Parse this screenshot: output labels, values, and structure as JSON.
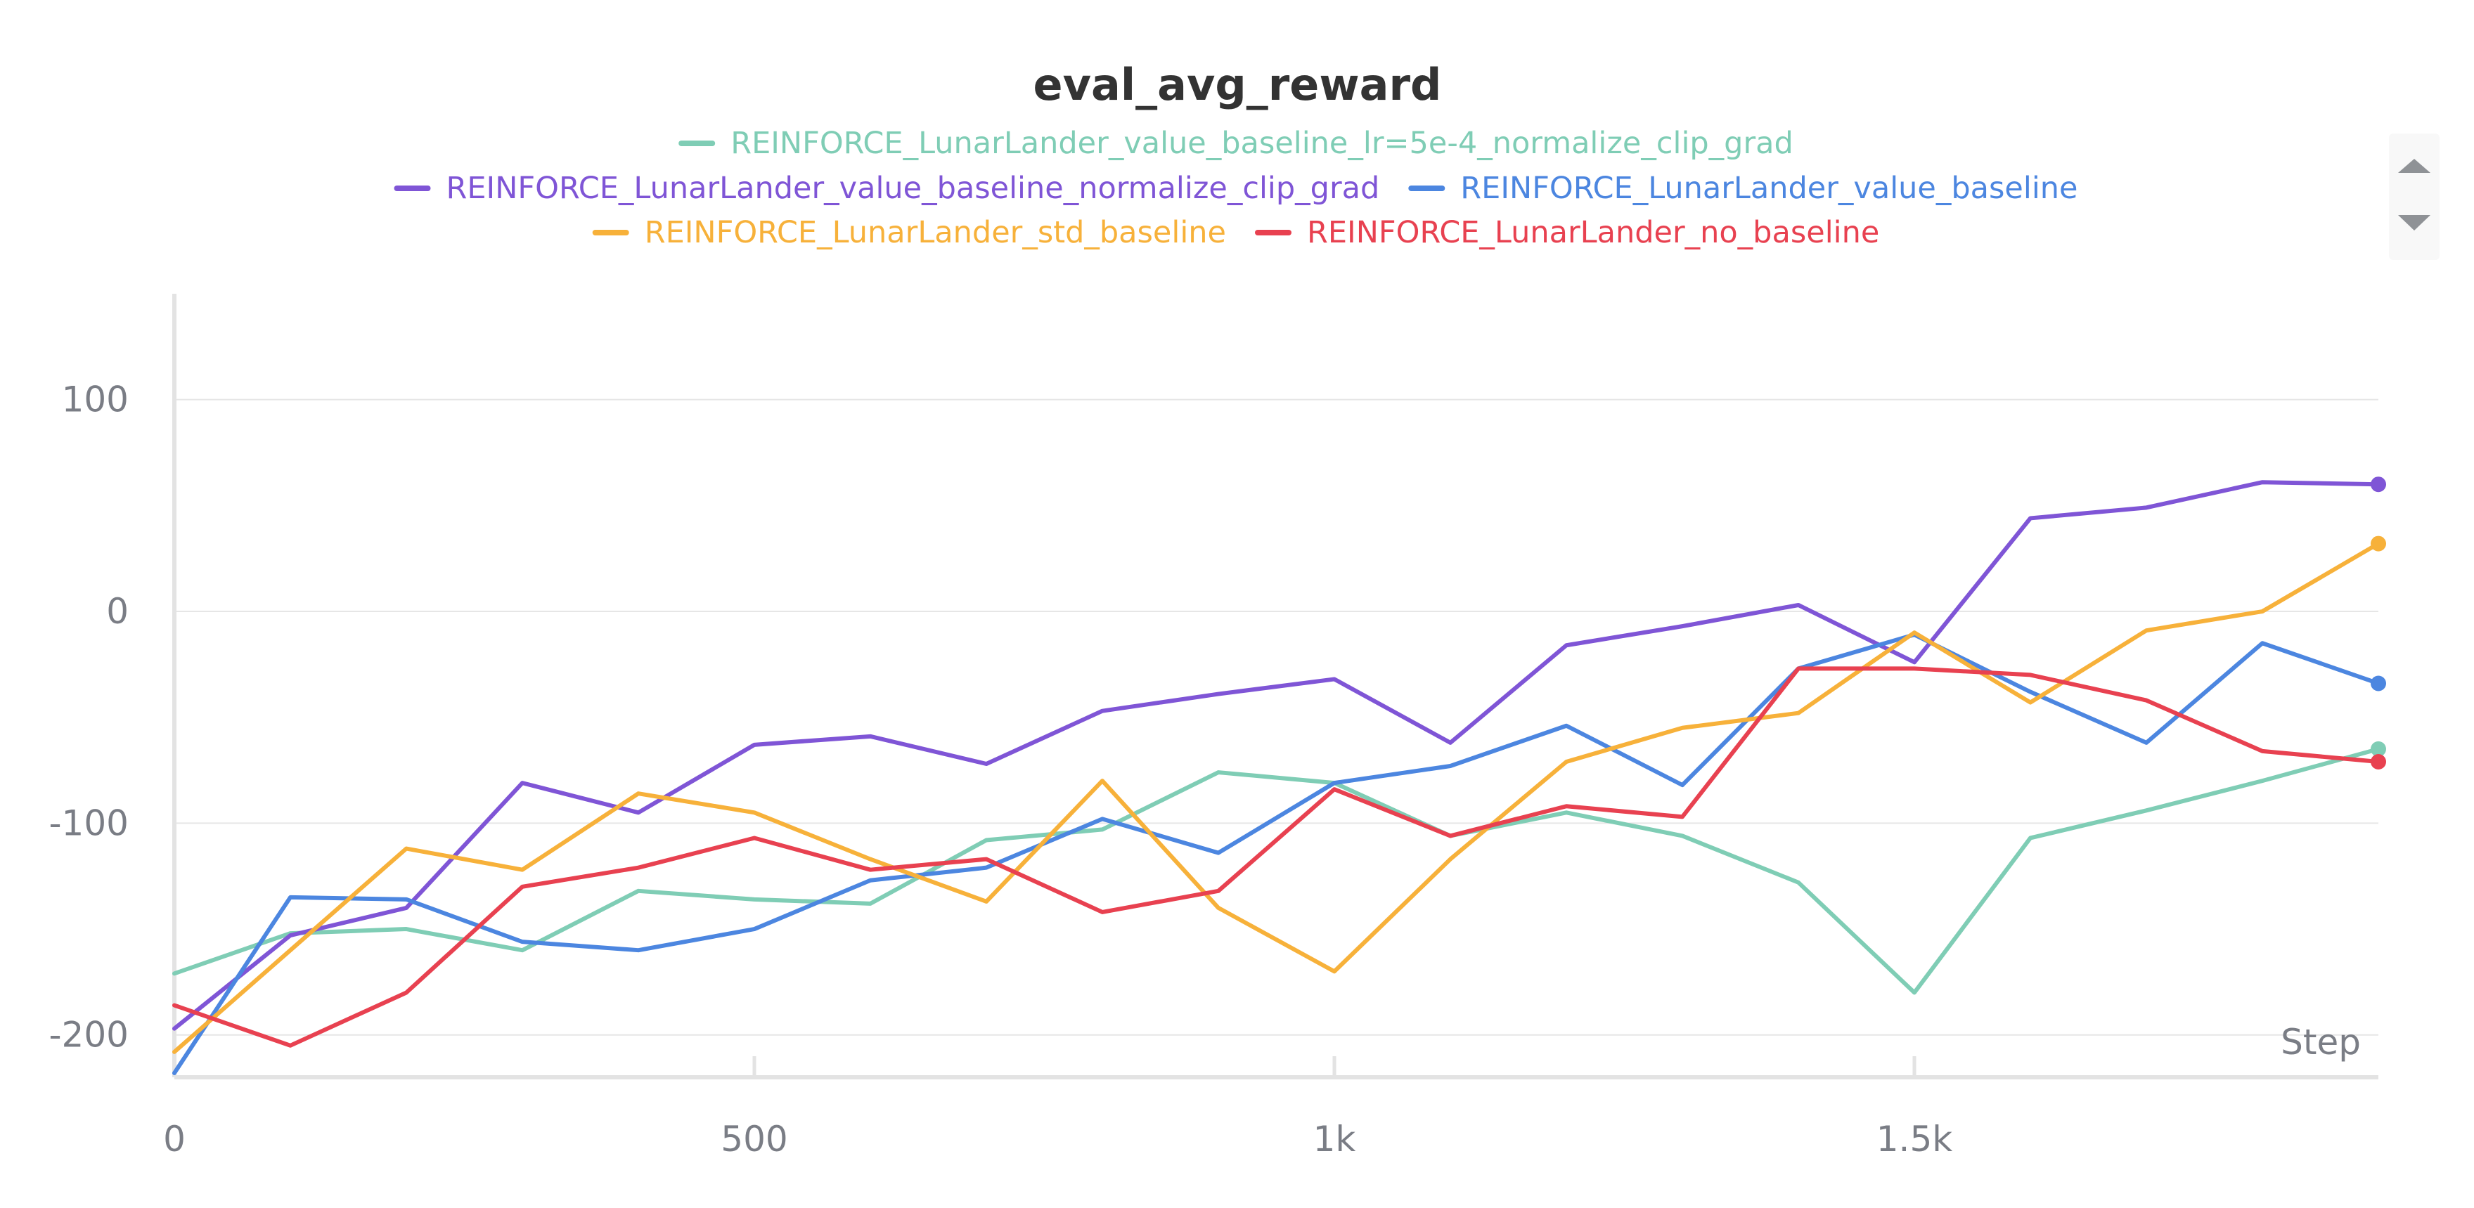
{
  "chart_data": {
    "type": "line",
    "title": "eval_avg_reward",
    "xlabel": "Step",
    "ylabel": "",
    "xlim": [
      0,
      1900
    ],
    "ylim": [
      -220,
      150
    ],
    "x_ticks": [
      {
        "value": 0,
        "label": "0"
      },
      {
        "value": 500,
        "label": "500"
      },
      {
        "value": 1000,
        "label": "1k"
      },
      {
        "value": 1500,
        "label": "1.5k"
      }
    ],
    "y_ticks": [
      {
        "value": 100,
        "label": "100"
      },
      {
        "value": 0,
        "label": "0"
      },
      {
        "value": -100,
        "label": "-100"
      },
      {
        "value": -200,
        "label": "-200"
      }
    ],
    "grid": true,
    "legend_position": "top",
    "x": [
      0,
      100,
      200,
      300,
      400,
      500,
      600,
      700,
      800,
      900,
      1000,
      1100,
      1200,
      1300,
      1400,
      1500,
      1600,
      1700,
      1800,
      1900
    ],
    "series": [
      {
        "name": "REINFORCE_LunarLander_value_baseline_lr=5e-4_normalize_clip_grad",
        "color": "#7fcdb5",
        "values": [
          -171,
          -152,
          -150,
          -160,
          -132,
          -136,
          -138,
          -108,
          -103,
          -76,
          -81,
          -106,
          -95,
          -106,
          -128,
          -180,
          -107,
          -94,
          -80,
          -65
        ]
      },
      {
        "name": "REINFORCE_LunarLander_value_baseline_normalize_clip_grad",
        "color": "#7f55d6",
        "values": [
          -197,
          -153,
          -140,
          -81,
          -95,
          -63,
          -59,
          -72,
          -47,
          -39,
          -32,
          -62,
          -16,
          -7,
          3,
          -24,
          44,
          49,
          61,
          60
        ]
      },
      {
        "name": "REINFORCE_LunarLander_value_baseline",
        "color": "#4c86e0",
        "values": [
          -218,
          -135,
          -136,
          -156,
          -160,
          -150,
          -127,
          -121,
          -98,
          -114,
          -81,
          -73,
          -54,
          -82,
          -27,
          -11,
          -38,
          -62,
          -15,
          -34
        ]
      },
      {
        "name": "REINFORCE_LunarLander_std_baseline",
        "color": "#f7b13a",
        "values": [
          -208,
          -160,
          -112,
          -122,
          -86,
          -95,
          -117,
          -137,
          -80,
          -140,
          -170,
          -117,
          -71,
          -55,
          -48,
          -10,
          -43,
          -9,
          0,
          32
        ]
      },
      {
        "name": "REINFORCE_LunarLander_no_baseline",
        "color": "#e84150",
        "values": [
          -186,
          -205,
          -180,
          -130,
          -121,
          -107,
          -122,
          -117,
          -142,
          -132,
          -84,
          -106,
          -92,
          -97,
          -27,
          -27,
          -30,
          -42,
          -66,
          -71
        ]
      }
    ]
  }
}
